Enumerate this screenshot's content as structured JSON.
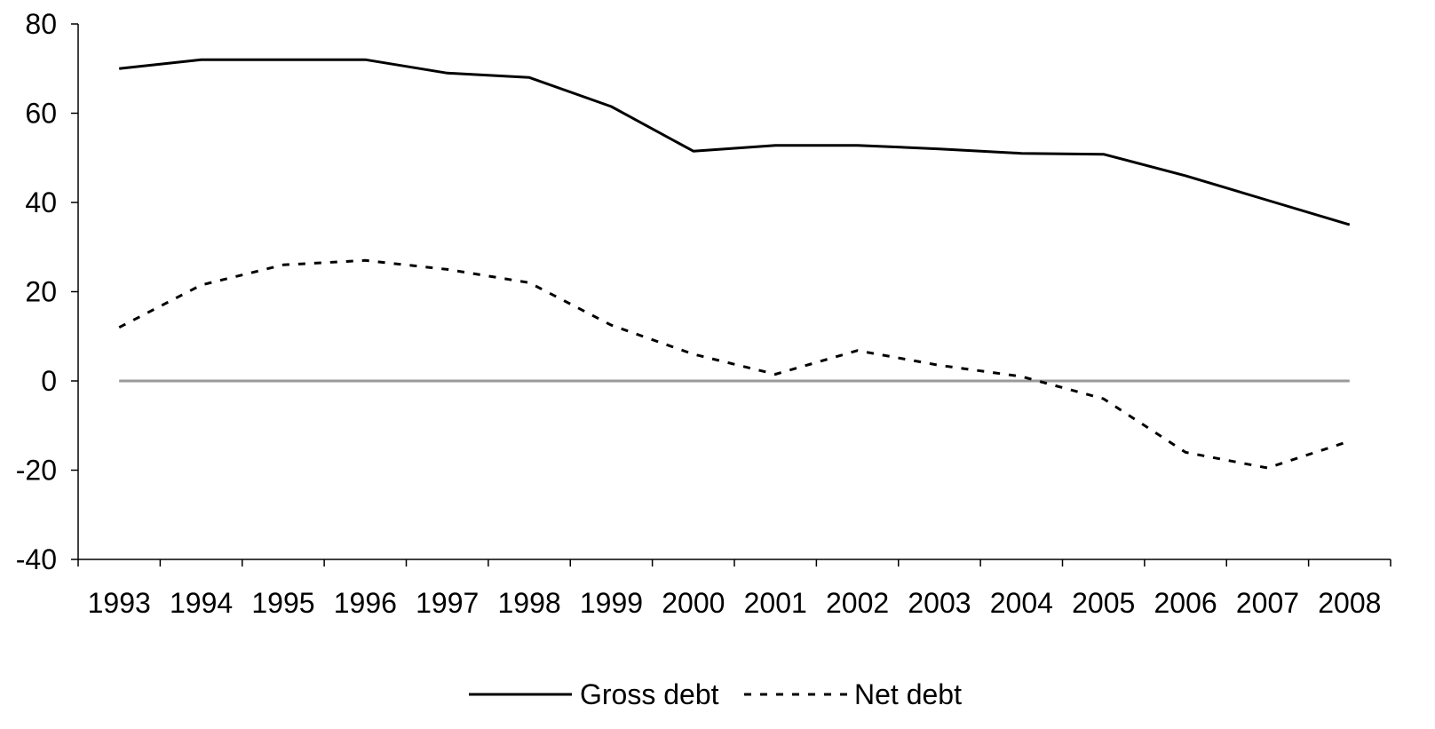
{
  "chart_data": {
    "type": "line",
    "title": "",
    "xlabel": "",
    "ylabel": "",
    "categories": [
      "1993",
      "1994",
      "1995",
      "1996",
      "1997",
      "1998",
      "1999",
      "2000",
      "2001",
      "2002",
      "2003",
      "2004",
      "2005",
      "2006",
      "2007",
      "2008"
    ],
    "ylim": [
      -40,
      80
    ],
    "yticks": [
      -40,
      -20,
      0,
      20,
      40,
      60,
      80
    ],
    "grid": false,
    "legend_position": "bottom",
    "zero_line": true,
    "series": [
      {
        "name": "Gross debt",
        "style": "solid",
        "color": "#000000",
        "values": [
          70,
          72,
          72,
          72,
          69,
          68,
          61.5,
          51.5,
          52.8,
          52.8,
          52,
          51,
          50.8,
          46,
          40.5,
          35
        ]
      },
      {
        "name": "Net debt",
        "style": "dashed",
        "color": "#000000",
        "values": [
          12,
          21.5,
          26,
          27,
          25,
          22,
          12.5,
          6,
          1.5,
          6.8,
          3.5,
          1,
          -4,
          -16,
          -19.5,
          -13.5
        ]
      }
    ],
    "colors": {
      "axis": "#000000",
      "zero_line": "#999999"
    }
  }
}
